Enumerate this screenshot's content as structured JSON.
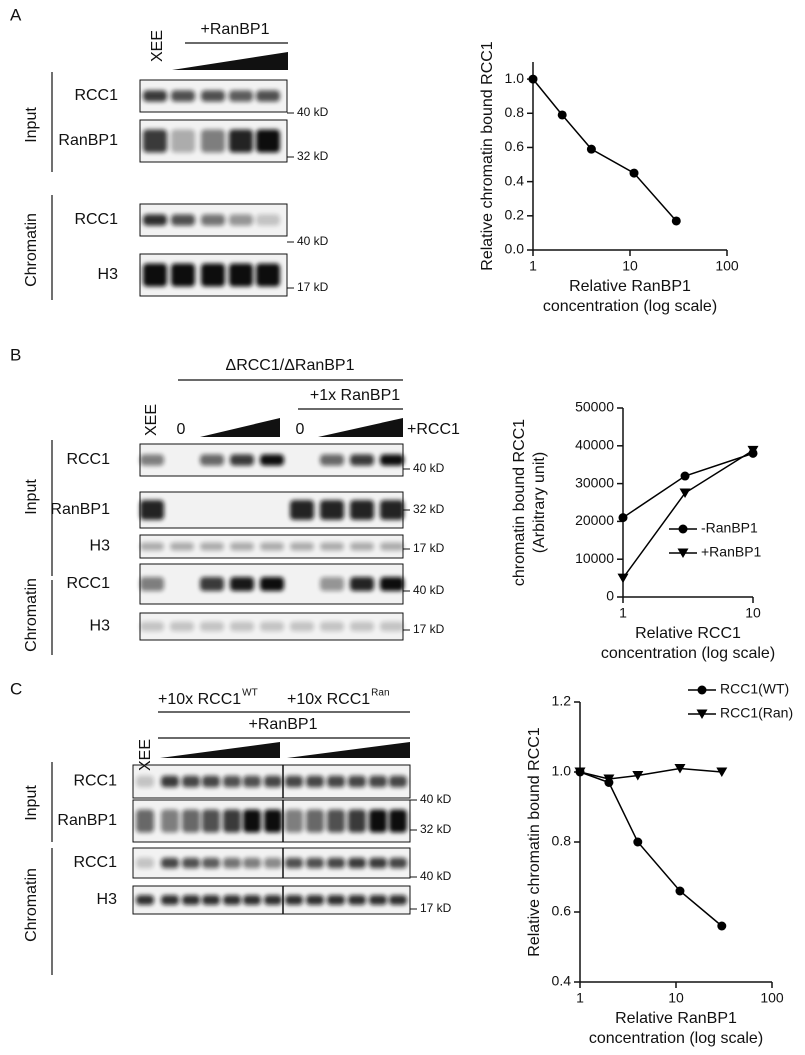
{
  "figure": {
    "panels": [
      {
        "letter": "A",
        "lane_header": "XEE",
        "treatment": "+RanBP1",
        "groups": [
          {
            "label": "Input",
            "rows": [
              {
                "protein": "RCC1",
                "marker": "40 kD"
              },
              {
                "protein": "RanBP1",
                "marker": "32 kD"
              }
            ]
          },
          {
            "label": "Chromatin",
            "rows": [
              {
                "protein": "RCC1",
                "marker": "40 kD"
              },
              {
                "protein": "H3",
                "marker": "17 kD"
              }
            ]
          }
        ]
      },
      {
        "letter": "B",
        "lane_header": "XEE",
        "condition": "ΔRCC1/ΔRanBP1",
        "treatment": "+1x RanBP1",
        "zero_labels": [
          "0",
          "0"
        ],
        "titration": "+RCC1",
        "groups": [
          {
            "label": "Input",
            "rows": [
              {
                "protein": "RCC1",
                "marker": "40 kD"
              },
              {
                "protein": "RanBP1",
                "marker": "32 kD"
              },
              {
                "protein": "H3",
                "marker": "17 kD"
              }
            ]
          },
          {
            "label": "Chromatin",
            "rows": [
              {
                "protein": "RCC1",
                "marker": "40 kD"
              },
              {
                "protein": "H3",
                "marker": "17 kD"
              }
            ]
          }
        ]
      },
      {
        "letter": "C",
        "lane_header": "XEE",
        "conditions": [
          {
            "label": "+10x RCC1",
            "superscript": "WT"
          },
          {
            "label": "+10x RCC1",
            "superscript": "Ran"
          }
        ],
        "treatment": "+RanBP1",
        "groups": [
          {
            "label": "Input",
            "rows": [
              {
                "protein": "RCC1",
                "marker": "40 kD"
              },
              {
                "protein": "RanBP1",
                "marker": "32 kD"
              }
            ]
          },
          {
            "label": "Chromatin",
            "rows": [
              {
                "protein": "RCC1",
                "marker": "40 kD"
              },
              {
                "protein": "H3",
                "marker": "17 kD"
              }
            ]
          }
        ]
      }
    ]
  },
  "chart_data": [
    {
      "type": "line",
      "xscale": "log",
      "x": [
        1,
        2,
        4,
        11,
        30
      ],
      "series": [
        {
          "color": "#000000",
          "marker": "circle",
          "values": [
            1.0,
            0.79,
            0.59,
            0.45,
            0.17
          ]
        }
      ],
      "xlim": [
        1,
        100
      ],
      "xticks": [
        1,
        10,
        100
      ],
      "ylim": [
        0,
        1.1
      ],
      "yticks": [
        {
          "value": 0,
          "label": "0.0"
        },
        0.2,
        0.4,
        0.6,
        0.8,
        {
          "value": 1,
          "label": "1.0"
        }
      ],
      "x_label": [
        "Relative RanBP1",
        "concentration (log scale)"
      ],
      "y_label": [
        "Relative chromatin bound RCC1"
      ]
    },
    {
      "type": "line",
      "xscale": "log",
      "x": [
        1,
        3,
        10
      ],
      "series": [
        {
          "name": "-RanBP1",
          "color": "#000000",
          "marker": "circle",
          "values": [
            21000,
            32000,
            38000
          ]
        },
        {
          "name": "+RanBP1",
          "color": "#000000",
          "marker": "triangle-down",
          "values": [
            5000,
            27500,
            38800
          ]
        }
      ],
      "xlim": [
        1,
        10
      ],
      "xticks": [
        1,
        10
      ],
      "ylim": [
        0,
        50000
      ],
      "yticks": [
        0,
        10000,
        20000,
        30000,
        40000,
        50000
      ],
      "legend": "lower right",
      "x_label": [
        "Relative RCC1",
        "concentration (log scale)"
      ],
      "y_label": [
        "chromatin bound RCC1",
        "(Arbitrary unit)"
      ]
    },
    {
      "type": "line",
      "xscale": "log",
      "x": [
        1,
        2,
        4,
        11,
        30
      ],
      "series": [
        {
          "name": "RCC1(WT)",
          "color": "#000000",
          "marker": "circle",
          "values": [
            1.0,
            0.97,
            0.8,
            0.66,
            0.56
          ]
        },
        {
          "name": "RCC1(Ran)",
          "color": "#000000",
          "marker": "triangle-down",
          "values": [
            1.0,
            0.98,
            0.99,
            1.01,
            1.0
          ]
        }
      ],
      "xlim": [
        1,
        100
      ],
      "xticks": [
        1,
        10,
        100
      ],
      "ylim": [
        0.4,
        1.2
      ],
      "yticks": [
        0.4,
        0.6,
        0.8,
        {
          "value": 1,
          "label": "1.0"
        },
        1.2
      ],
      "legend": "upper right",
      "x_label": [
        "Relative RanBP1",
        "concentration (log scale)"
      ],
      "y_label": [
        "Relative chromatin bound RCC1"
      ]
    }
  ]
}
